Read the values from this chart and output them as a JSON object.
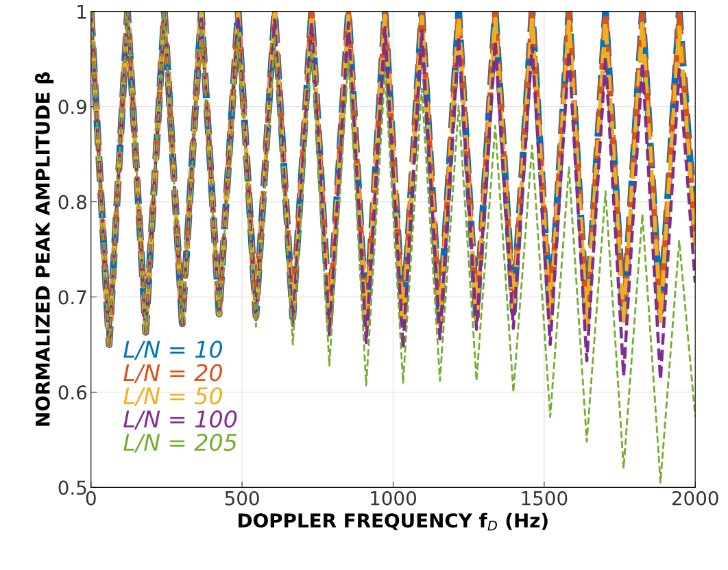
{
  "chart_data": {
    "type": "line",
    "xlabel": "DOPPLER FREQUENCY f$_{D}$ (Hz)",
    "ylabel": "NORMALIZED PEAK AMPLITUDE β",
    "x": [
      0,
      60,
      121,
      181,
      243,
      302,
      365,
      424,
      487,
      546,
      608,
      668,
      730,
      789,
      852,
      911,
      973,
      1033,
      1095,
      1155,
      1217,
      1276,
      1338,
      1398,
      1460,
      1520,
      1582,
      1641,
      1703,
      1763,
      1825,
      1885,
      1947,
      2000
    ],
    "series": [
      {
        "name": "L/N = 10",
        "color": "#0072bd",
        "values": [
          1,
          0.65,
          1,
          0.663,
          1,
          0.672,
          1,
          0.682,
          1,
          0.68,
          1,
          0.678,
          1,
          0.675,
          1,
          0.673,
          1,
          0.673,
          1,
          0.675,
          1,
          0.68,
          1,
          0.685,
          1,
          0.68,
          1,
          0.675,
          1,
          0.678,
          1,
          0.68,
          1,
          0.77
        ]
      },
      {
        "name": "L/N = 20",
        "color": "#d95319",
        "values": [
          1,
          0.65,
          1,
          0.663,
          0.999,
          0.672,
          0.999,
          0.682,
          0.998,
          0.679,
          0.998,
          0.677,
          0.998,
          0.673,
          0.998,
          0.671,
          0.998,
          0.671,
          0.998,
          0.673,
          0.998,
          0.678,
          0.998,
          0.683,
          0.998,
          0.678,
          0.998,
          0.673,
          0.998,
          0.676,
          0.998,
          0.678,
          0.997,
          0.76
        ]
      },
      {
        "name": "L/N = 50",
        "color": "#edb120",
        "values": [
          1,
          0.65,
          1,
          0.663,
          0.999,
          0.672,
          0.998,
          0.682,
          0.997,
          0.678,
          0.997,
          0.675,
          0.996,
          0.67,
          0.995,
          0.668,
          0.995,
          0.668,
          0.994,
          0.67,
          0.993,
          0.675,
          0.992,
          0.68,
          0.991,
          0.675,
          0.989,
          0.67,
          0.988,
          0.672,
          0.987,
          0.675,
          0.983,
          0.754
        ]
      },
      {
        "name": "L/N = 100",
        "color": "#7e2f8e",
        "values": [
          1,
          0.65,
          1,
          0.663,
          0.998,
          0.672,
          0.996,
          0.682,
          0.995,
          0.676,
          0.991,
          0.67,
          0.989,
          0.66,
          0.988,
          0.652,
          0.983,
          0.646,
          0.98,
          0.656,
          0.974,
          0.666,
          0.969,
          0.667,
          0.964,
          0.65,
          0.958,
          0.633,
          0.952,
          0.617,
          0.946,
          0.613,
          0.939,
          0.715
        ]
      },
      {
        "name": "L/N = 205",
        "color": "#77ac30",
        "values": [
          1,
          0.65,
          1,
          0.663,
          0.998,
          0.672,
          0.988,
          0.682,
          0.982,
          0.669,
          0.973,
          0.65,
          0.964,
          0.628,
          0.951,
          0.607,
          0.936,
          0.61,
          0.919,
          0.612,
          0.901,
          0.612,
          0.88,
          0.6,
          0.859,
          0.574,
          0.836,
          0.548,
          0.811,
          0.52,
          0.787,
          0.505,
          0.759,
          0.574
        ]
      }
    ],
    "xlim": [
      0,
      2000
    ],
    "xticks": [
      0,
      500,
      1000,
      1500,
      2000
    ],
    "ylim": [
      0.5,
      1
    ],
    "yticks": [
      0.5,
      0.6,
      0.7,
      0.8,
      0.9,
      1
    ],
    "grid": true,
    "legend": "bottom left",
    "line_style": "dashed",
    "marker": "none"
  }
}
